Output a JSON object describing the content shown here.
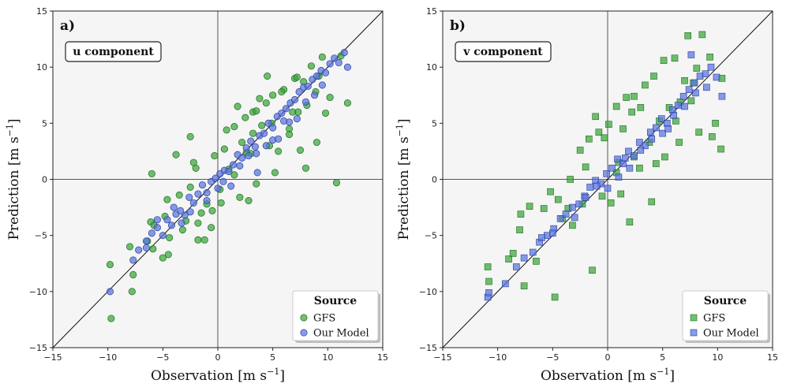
{
  "chart_data": [
    {
      "type": "scatter",
      "panel_label": "a)",
      "component_label": "u component",
      "xlabel": "Observation  [m s",
      "ylabel": "Prediction  [m s",
      "unit_exponent": "−1",
      "unit_close": "]",
      "xlim": [
        -15,
        15
      ],
      "ylim": [
        -15,
        15
      ],
      "ticks": [
        -15,
        -10,
        -5,
        0,
        5,
        10,
        15
      ],
      "tick_labels": [
        "−15",
        "−10",
        "−5",
        "0",
        "5",
        "10",
        "15"
      ],
      "legend": {
        "title": "Source",
        "location": "lower-right",
        "entries": [
          "GFS",
          "Our Model"
        ]
      },
      "marker": "circle",
      "series": [
        {
          "name": "GFS",
          "color": "#3aa63a",
          "edge": "#1f6b1f",
          "x": [
            -9.7,
            -9.8,
            -7.8,
            -7.7,
            -6.4,
            -6.1,
            -5.9,
            -5.0,
            -5.8,
            -4.8,
            -4.6,
            -4.4,
            -3.2,
            -3.5,
            -2.9,
            -2.5,
            -1.8,
            -2.0,
            -1.5,
            -1.0,
            -0.6,
            -0.3,
            0.3,
            0.6,
            1.0,
            1.5,
            2.0,
            2.2,
            2.5,
            3.0,
            3.2,
            3.5,
            4.0,
            4.4,
            4.7,
            5.0,
            5.5,
            6.0,
            6.5,
            7.0,
            7.3,
            7.8,
            8.1,
            8.5,
            8.9,
            9.5,
            9.8,
            11.8,
            9.2,
            7.2,
            6.5,
            4.5,
            3.2,
            1.5,
            -0.5,
            -2.5,
            -4.5,
            2.8,
            0.8,
            -1.2,
            5.2,
            7.5,
            9.0,
            3.8,
            -3.8,
            -6.0,
            1.8,
            4.9,
            6.8,
            8.0,
            -2.2,
            0.2,
            2.6,
            10.2,
            -8.0,
            3.5,
            -1.8,
            5.8,
            10.8,
            11.2
          ],
          "y": [
            -12.4,
            -7.6,
            -10.0,
            -8.5,
            -5.5,
            -3.8,
            -6.2,
            -7.0,
            -4.1,
            -3.3,
            -1.8,
            -5.2,
            -4.5,
            -1.4,
            -3.7,
            -0.7,
            -5.4,
            1.0,
            -3.0,
            -2.2,
            -4.3,
            2.1,
            -2.1,
            2.7,
            0.9,
            4.7,
            -1.6,
            3.3,
            5.5,
            2.3,
            6.0,
            -0.4,
            4.8,
            6.8,
            3.0,
            7.5,
            2.5,
            8.0,
            4.5,
            9.0,
            6.0,
            8.7,
            6.6,
            10.1,
            7.8,
            10.9,
            5.9,
            6.8,
            9.2,
            9.1,
            4.0,
            9.2,
            4.1,
            0.4,
            -2.8,
            3.8,
            -6.7,
            -1.9,
            4.4,
            -5.4,
            0.6,
            2.6,
            3.3,
            7.2,
            2.2,
            0.5,
            6.5,
            5.0,
            6.0,
            1.0,
            1.5,
            -0.9,
            2.4,
            7.3,
            -6.0,
            6.1,
            -3.9,
            7.8,
            -0.3,
            11.0
          ]
        },
        {
          "name": "Our Model",
          "color": "#5a75e0",
          "edge": "#2a3f9a",
          "x": [
            -9.8,
            -7.7,
            -7.2,
            -6.5,
            -6.0,
            -5.5,
            -5.0,
            -4.6,
            -4.2,
            -3.8,
            -3.4,
            -3.0,
            -2.6,
            -2.2,
            -1.8,
            -1.4,
            -1.0,
            -0.6,
            -0.2,
            0.2,
            0.6,
            1.0,
            1.4,
            1.8,
            2.2,
            2.6,
            3.0,
            3.4,
            3.8,
            4.2,
            4.6,
            5.0,
            5.4,
            5.8,
            6.2,
            6.6,
            7.0,
            7.4,
            7.8,
            8.2,
            8.6,
            9.0,
            9.4,
            9.8,
            10.2,
            10.6,
            11.0,
            11.5,
            11.8,
            -5.5,
            -4.0,
            -2.5,
            -1.0,
            0.5,
            2.0,
            3.5,
            5.0,
            6.5,
            8.0,
            9.5,
            1.2,
            4.4,
            7.2,
            -3.3,
            0.0,
            2.8,
            6.0,
            8.8,
            -6.5,
            3.6,
            5.5
          ],
          "y": [
            -10.0,
            -7.2,
            -6.3,
            -5.5,
            -4.8,
            -4.3,
            -5.0,
            -3.6,
            -4.1,
            -3.1,
            -2.8,
            -3.2,
            -1.6,
            -2.1,
            -1.3,
            -0.5,
            -1.2,
            -0.2,
            0.1,
            0.5,
            0.8,
            0.7,
            1.3,
            2.2,
            1.9,
            2.8,
            3.4,
            2.9,
            3.9,
            4.1,
            5.0,
            4.6,
            5.6,
            5.9,
            6.3,
            6.8,
            7.1,
            7.8,
            8.2,
            8.3,
            8.9,
            9.2,
            9.7,
            9.5,
            10.3,
            10.8,
            10.4,
            11.3,
            10.0,
            -3.6,
            -2.5,
            -2.9,
            -1.9,
            -0.2,
            1.2,
            2.3,
            3.5,
            5.1,
            6.9,
            8.4,
            -0.6,
            3.0,
            5.4,
            -3.9,
            -0.8,
            2.1,
            5.2,
            7.5,
            -6.1,
            0.6,
            3.6
          ]
        }
      ]
    },
    {
      "type": "scatter",
      "panel_label": "b)",
      "component_label": "v component",
      "xlabel": "Observation  [m s",
      "ylabel": "Prediction  [m s",
      "unit_exponent": "−1",
      "unit_close": "]",
      "xlim": [
        -15,
        15
      ],
      "ylim": [
        -15,
        15
      ],
      "ticks": [
        -15,
        -10,
        -5,
        0,
        5,
        10,
        15
      ],
      "tick_labels": [
        "−15",
        "−10",
        "−5",
        "0",
        "5",
        "10",
        "15"
      ],
      "legend": {
        "title": "Source",
        "location": "lower-right",
        "entries": [
          "GFS",
          "Our Model"
        ]
      },
      "marker": "square",
      "series": [
        {
          "name": "GFS",
          "color": "#3aa63a",
          "edge": "#1f6b1f",
          "x": [
            -10.9,
            -10.8,
            -9.0,
            -8.6,
            -7.9,
            -7.6,
            -7.1,
            -6.5,
            -5.8,
            -4.8,
            -4.5,
            -4.1,
            -3.4,
            -3.2,
            -2.5,
            -2.3,
            -1.7,
            -1.4,
            -0.8,
            -0.5,
            0.1,
            0.3,
            0.8,
            1.2,
            1.7,
            2.0,
            2.4,
            2.9,
            3.4,
            3.8,
            4.2,
            4.7,
            5.1,
            5.6,
            6.1,
            6.6,
            7.0,
            7.3,
            7.8,
            8.1,
            8.6,
            9.3,
            9.8,
            10.4,
            6.5,
            4.4,
            2.4,
            1.4,
            -0.3,
            -2.0,
            -3.6,
            3.0,
            5.2,
            7.6,
            9.5,
            -1.1,
            0.8,
            2.2,
            4.0,
            6.2,
            -5.2,
            -8.0,
            1.0,
            8.3,
            10.3
          ],
          "y": [
            -7.8,
            -9.1,
            -7.1,
            -6.6,
            -3.1,
            -9.5,
            -2.4,
            -7.3,
            -2.6,
            -10.5,
            -1.8,
            -3.5,
            0.0,
            -4.1,
            2.6,
            -2.2,
            3.6,
            -8.1,
            4.2,
            -1.5,
            4.9,
            -2.1,
            6.5,
            -1.3,
            7.3,
            -3.8,
            7.4,
            1.0,
            8.4,
            3.3,
            9.2,
            5.2,
            10.6,
            6.4,
            10.8,
            6.9,
            8.8,
            12.8,
            8.6,
            9.9,
            12.9,
            10.9,
            5.0,
            9.0,
            3.3,
            1.4,
            2.0,
            4.5,
            3.7,
            1.1,
            -2.6,
            6.4,
            2.0,
            7.0,
            3.8,
            5.6,
            0.6,
            6.0,
            -2.0,
            5.2,
            -1.1,
            -4.5,
            1.5,
            4.2,
            2.7
          ],
          "shown_extra": []
        },
        {
          "name": "Our Model",
          "color": "#5a75e0",
          "edge": "#2a3f9a",
          "x": [
            -10.9,
            -10.8,
            -9.3,
            -8.3,
            -7.6,
            -6.8,
            -6.2,
            -5.5,
            -4.9,
            -4.3,
            -3.8,
            -3.2,
            -2.6,
            -2.1,
            -1.6,
            -1.1,
            -0.6,
            -0.1,
            0.4,
            0.9,
            1.4,
            1.9,
            2.4,
            2.9,
            3.4,
            3.9,
            4.4,
            4.9,
            5.4,
            5.9,
            6.4,
            6.9,
            7.4,
            7.9,
            8.4,
            8.9,
            9.4,
            9.9,
            10.4,
            -5.0,
            -3.0,
            -1.0,
            1.0,
            3.0,
            5.0,
            7.0,
            9.0,
            0.0,
            2.0,
            4.0,
            6.0,
            8.0,
            -6.0,
            -2.0,
            1.6,
            5.5,
            7.6
          ],
          "y": [
            -10.5,
            -10.1,
            -9.3,
            -7.8,
            -7.0,
            -6.5,
            -5.6,
            -5.0,
            -4.4,
            -3.5,
            -3.1,
            -2.5,
            -2.2,
            -1.5,
            -0.7,
            -0.1,
            -0.4,
            0.5,
            1.0,
            1.8,
            1.4,
            2.5,
            2.1,
            3.3,
            3.0,
            4.2,
            4.6,
            5.4,
            5.0,
            6.2,
            6.6,
            7.4,
            8.0,
            8.6,
            9.2,
            9.4,
            10.0,
            9.1,
            7.4,
            -4.8,
            -3.4,
            -0.6,
            0.2,
            2.6,
            4.1,
            6.5,
            8.2,
            -0.8,
            1.0,
            3.6,
            5.7,
            7.7,
            -5.2,
            -1.6,
            1.9,
            4.5,
            11.1
          ]
        }
      ]
    }
  ]
}
